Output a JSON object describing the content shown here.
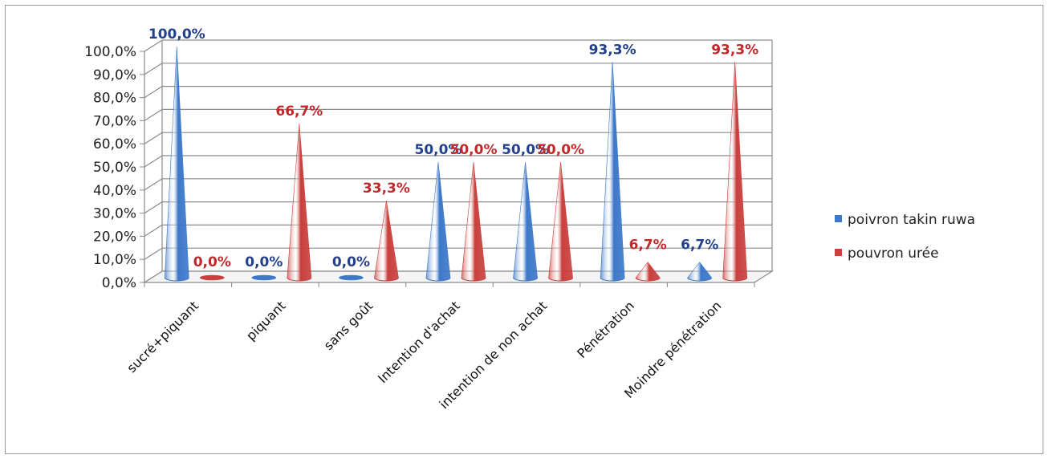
{
  "chart_data": {
    "type": "bar",
    "style": "3d-cone",
    "categories": [
      "sucré+piquant",
      "piquant",
      "sans goût",
      "Intention d'achat",
      "intention de non achat",
      "Pénétration",
      "Moindre pénétration"
    ],
    "series": [
      {
        "name": "poivron takin ruwa",
        "color": "#3d78c9",
        "label_color": "#23408a",
        "values": [
          100.0,
          0.0,
          0.0,
          50.0,
          50.0,
          93.3,
          6.7
        ],
        "labels": [
          "100,0%",
          "0,0%",
          "0,0%",
          "50,0%",
          "50,0%",
          "93,3%",
          "6,7%"
        ]
      },
      {
        "name": "pouvron urée",
        "color": "#c9403d",
        "label_color": "#c0282a",
        "values": [
          0.0,
          66.7,
          33.3,
          50.0,
          50.0,
          6.7,
          93.3
        ],
        "labels": [
          "0,0%",
          "66,7%",
          "33,3%",
          "50,0%",
          "50,0%",
          "6,7%",
          "93,3%"
        ]
      }
    ],
    "ylim": [
      0,
      100
    ],
    "yticks": [
      "0,0%",
      "10,0%",
      "20,0%",
      "30,0%",
      "40,0%",
      "50,0%",
      "60,0%",
      "70,0%",
      "80,0%",
      "90,0%",
      "100,0%"
    ],
    "grid": true,
    "legend_position": "right"
  }
}
